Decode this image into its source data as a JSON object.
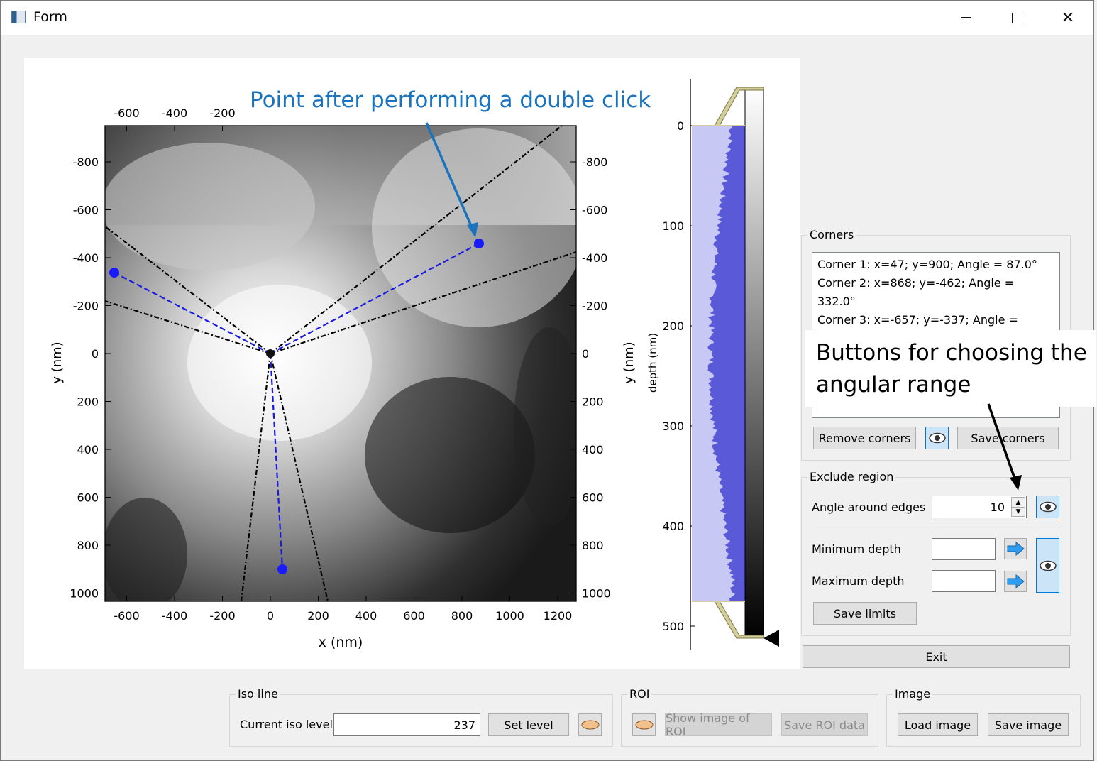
{
  "window": {
    "title": "Form"
  },
  "annotations": {
    "double_click_label": "Point after performing a double click",
    "angular_range_label_line1": "Buttons for choosing the",
    "angular_range_label_line2": "angular range"
  },
  "plot": {
    "xlabel": "x (nm)",
    "ylabel_left": "y (nm)",
    "ylabel_right": "y (nm)",
    "depth_label": "depth (nm)",
    "x_ticks_bottom": [
      "-600",
      "-400",
      "-200",
      "0",
      "200",
      "400",
      "600",
      "800",
      "1000",
      "1200"
    ],
    "x_ticks_top": [
      "-600",
      "-400",
      "-200"
    ],
    "y_ticks": [
      "-800",
      "-600",
      "-400",
      "-200",
      "0",
      "200",
      "400",
      "600",
      "800",
      "1000"
    ],
    "depth_ticks": [
      "0",
      "100",
      "200",
      "300",
      "400",
      "500"
    ],
    "points": [
      {
        "x": 47,
        "y": 900
      },
      {
        "x": 868,
        "y": -462
      },
      {
        "x": -657,
        "y": -337
      }
    ]
  },
  "corners": {
    "title": "Corners",
    "items": [
      "Corner 1: x=47; y=900; Angle = 87.0°",
      "Corner 2: x=868; y=-462; Angle = 332.0°",
      "Corner 3: x=-657; y=-337; Angle = 207.2°"
    ],
    "remove_label": "Remove corners",
    "save_label": "Save corners"
  },
  "exclude": {
    "title": "Exclude region",
    "angle_label": "Angle around edges",
    "angle_value": "10",
    "min_depth_label": "Minimum depth",
    "max_depth_label": "Maximum depth",
    "min_depth_value": "",
    "max_depth_value": "",
    "save_limits_label": "Save limits"
  },
  "exit_label": "Exit",
  "iso": {
    "title": "Iso line",
    "current_label": "Current iso level",
    "value": "237",
    "set_label": "Set level"
  },
  "roi": {
    "title": "ROI",
    "show_label": "Show image of ROI",
    "save_label": "Save ROI data"
  },
  "image": {
    "title": "Image",
    "load_label": "Load image",
    "save_label": "Save image"
  }
}
